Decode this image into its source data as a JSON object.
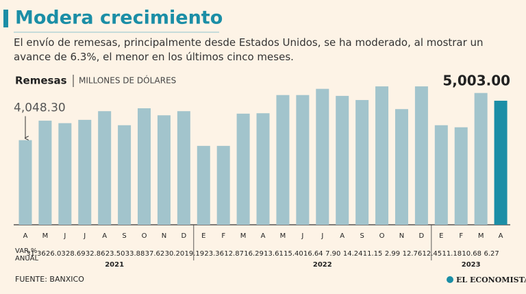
{
  "chart_data": {
    "type": "bar",
    "title": "Modera crecimiento",
    "subtitle": "El envío de remesas, principalmente desde Estados Unidos, se ha moderado, al mostrar un avance de 6.3%, el menor en los últimos cinco meses.",
    "series_name": "Remesas",
    "unit": "MILLONES DE DÓLARES",
    "change_header": [
      "VAR.%",
      "ANUAL"
    ],
    "source": "FUENTE: BANXICO",
    "brand": "EL ECONOMISTA",
    "ylim": [
      2000,
      5500
    ],
    "groups": [
      {
        "label": "2021",
        "categories": [
          "A",
          "M",
          "J",
          "J",
          "A",
          "S",
          "O",
          "N",
          "D"
        ],
        "values": [
          4048.3,
          4520,
          4460,
          4540,
          4750,
          4410,
          4820,
          4650,
          4750
        ],
        "value_labels": [
          "4,048.30",
          null,
          null,
          null,
          null,
          null,
          null,
          null,
          null
        ],
        "colors": [
          "#a2c4cc",
          "#a2c4cc",
          "#a2c4cc",
          "#a2c4cc",
          "#a2c4cc",
          "#a2c4cc",
          "#a2c4cc",
          "#a2c4cc",
          "#a2c4cc"
        ],
        "change": [
          31.36,
          26.03,
          28.69,
          32.86,
          {
            "value": 23.5,
            "label": "23.50"
          },
          33.88,
          37.62,
          {
            "value": 30.2,
            "label": "30.20"
          },
          19.19
        ]
      },
      {
        "label": "2022",
        "categories": [
          "E",
          "F",
          "M",
          "A",
          "M",
          "J",
          "J",
          "A",
          "S",
          "O",
          "N",
          "D"
        ],
        "values": [
          3910,
          3910,
          4690,
          4700,
          5140,
          5140,
          5290,
          5120,
          5020,
          5350,
          4800,
          5350
        ],
        "value_labels": [
          null,
          null,
          null,
          null,
          null,
          null,
          null,
          null,
          null,
          null,
          null,
          null
        ],
        "colors": [
          "#a2c4cc",
          "#a2c4cc",
          "#a2c4cc",
          "#a2c4cc",
          "#a2c4cc",
          "#a2c4cc",
          "#a2c4cc",
          "#a2c4cc",
          "#a2c4cc",
          "#a2c4cc",
          "#a2c4cc",
          "#a2c4cc"
        ],
        "change": [
          23.36,
          12.87,
          16.29,
          13.61,
          {
            "value": 15.4,
            "label": "15.40"
          },
          16.64,
          {
            "value": 7.9,
            "label": "7.90"
          },
          14.24,
          11.15,
          2.99,
          12.76,
          12.45
        ]
      },
      {
        "label": "2023",
        "categories": [
          "E",
          "F",
          "M",
          "A"
        ],
        "values": [
          4410,
          4360,
          5190,
          5003
        ],
        "value_labels": [
          null,
          null,
          null,
          "5,003.00"
        ],
        "colors": [
          "#a2c4cc",
          "#a2c4cc",
          "#a2c4cc",
          "#1b8ea6"
        ],
        "change": [
          11.18,
          10.68,
          6.27,
          null
        ]
      }
    ]
  }
}
